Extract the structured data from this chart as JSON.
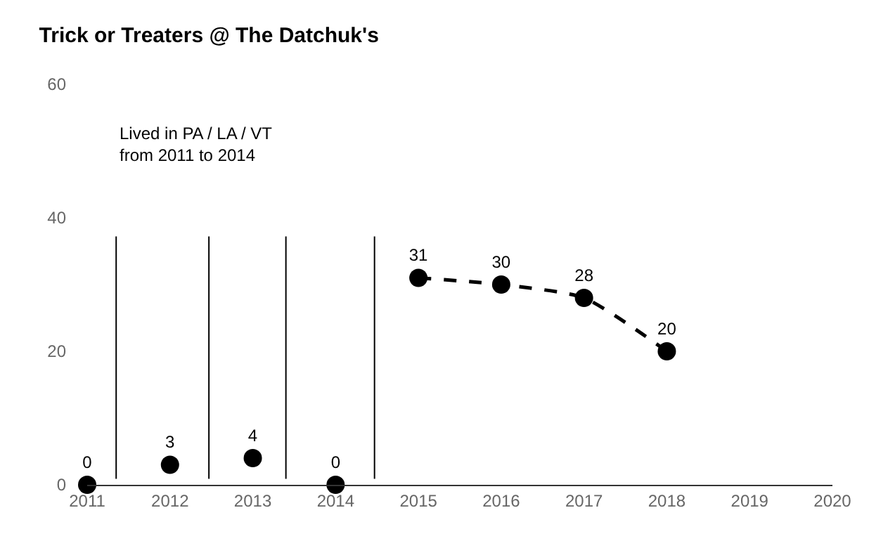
{
  "chart_data": {
    "type": "scatter",
    "title": "Trick or Treaters @ The Datchuk's",
    "x": [
      2011,
      2012,
      2013,
      2014,
      2015,
      2016,
      2017,
      2018
    ],
    "series": [
      {
        "color": "#000000",
        "marker": "circle",
        "values": [
          0,
          3,
          4,
          0,
          31,
          30,
          28,
          20
        ],
        "value_labels": [
          "0",
          "3",
          "4",
          "0",
          "31",
          "30",
          "28",
          "20"
        ]
      },
      {
        "type": "line",
        "color": "#000000",
        "marker": "none",
        "line_style": "dashed",
        "x": [
          2015,
          2016,
          2017,
          2018
        ],
        "values": [
          31,
          30,
          28,
          20
        ]
      }
    ],
    "ref_lines": [
      {
        "axis": "x",
        "value": 2011.35,
        "color": "#000000"
      },
      {
        "axis": "x",
        "value": 2012.47,
        "color": "#000000"
      },
      {
        "axis": "x",
        "value": 2013.4,
        "color": "#000000"
      },
      {
        "axis": "x",
        "value": 2014.47,
        "color": "#000000"
      }
    ],
    "annotations": [
      "Lived in PA / LA / VT\nfrom 2011 to 2014"
    ],
    "xlim": [
      2011,
      2020
    ],
    "xticks": [
      2011,
      2012,
      2013,
      2014,
      2015,
      2016,
      2017,
      2018,
      2019,
      2020
    ],
    "ylim": [
      0,
      60
    ],
    "yticks": [
      0,
      20,
      40,
      60
    ]
  }
}
